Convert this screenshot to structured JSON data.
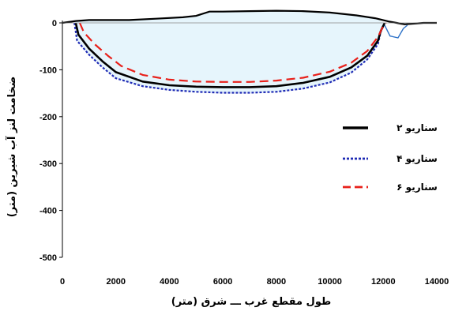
{
  "chart_data": {
    "type": "line",
    "title": "",
    "xlabel": "طول مقطع غرب ـــ شرق (متر)",
    "ylabel": "ضخامت لنز آب شیرین (متر)",
    "xlim": [
      0,
      14000
    ],
    "ylim": [
      -500,
      0
    ],
    "xticks": [
      0,
      2000,
      4000,
      6000,
      8000,
      10000,
      12000,
      14000
    ],
    "yticks": [
      0,
      -100,
      -200,
      -300,
      -400,
      -500
    ],
    "grid": false,
    "legend_position": "right",
    "lens_fill_color": "#e6f5fc",
    "surface": {
      "x": [
        0,
        500,
        1000,
        2500,
        3500,
        4500,
        5000,
        5500,
        6000,
        7000,
        8000,
        9000,
        10000,
        11000,
        11700,
        12200,
        12500,
        12800,
        13500,
        14000
      ],
      "y": [
        0,
        4,
        6,
        6,
        9,
        12,
        15,
        24,
        24,
        25,
        26,
        25,
        22,
        16,
        10,
        3,
        0,
        -3,
        0,
        0
      ]
    },
    "surface_spike": {
      "x": [
        12050,
        12250,
        12550,
        12750,
        12900
      ],
      "y": [
        -5,
        -28,
        -32,
        -12,
        -5
      ]
    },
    "series": [
      {
        "name": "سناریو ۲",
        "color": "#000000",
        "style": "solid",
        "x": [
          500,
          600,
          1000,
          1500,
          2000,
          3000,
          4000,
          5000,
          6000,
          7000,
          8000,
          9000,
          10000,
          10800,
          11400,
          11800,
          11900,
          12050
        ],
        "y": [
          0,
          -25,
          -55,
          -82,
          -105,
          -125,
          -133,
          -136,
          -137,
          -137,
          -135,
          -128,
          -115,
          -95,
          -70,
          -38,
          -18,
          0
        ]
      },
      {
        "name": "سناریو ۴",
        "color": "#1f2bb5",
        "style": "dotted",
        "x": [
          450,
          550,
          1000,
          1500,
          2000,
          3000,
          4000,
          5000,
          6000,
          7000,
          8000,
          9000,
          10000,
          10800,
          11400,
          11800,
          11900,
          12050
        ],
        "y": [
          0,
          -38,
          -68,
          -95,
          -118,
          -135,
          -143,
          -147,
          -149,
          -149,
          -147,
          -140,
          -127,
          -106,
          -78,
          -45,
          -20,
          0
        ]
      },
      {
        "name": "سناریو ۶",
        "color": "#e8201a",
        "style": "dashed",
        "x": [
          650,
          800,
          1200,
          1700,
          2200,
          3000,
          4000,
          5000,
          6000,
          7000,
          8000,
          9000,
          10000,
          10800,
          11400,
          11800,
          11950,
          12100
        ],
        "y": [
          0,
          -20,
          -45,
          -70,
          -92,
          -111,
          -121,
          -125,
          -126,
          -126,
          -123,
          -117,
          -104,
          -85,
          -60,
          -30,
          -12,
          0
        ]
      }
    ]
  }
}
